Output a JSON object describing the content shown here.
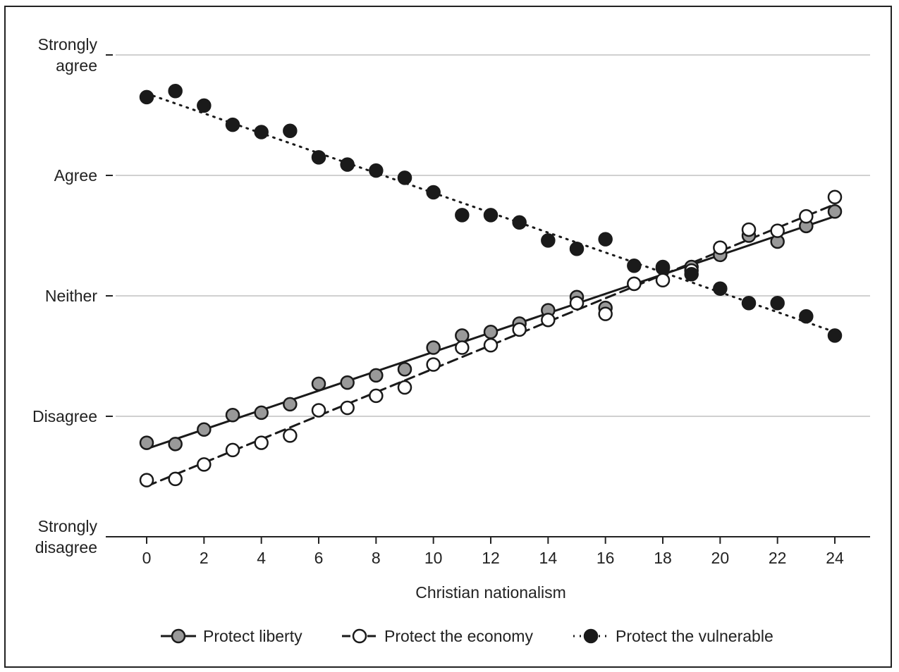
{
  "chart_data": {
    "type": "line",
    "title": "",
    "xlabel": "Christian nationalism",
    "ylabel": "",
    "xlim": [
      0,
      24
    ],
    "ylim": [
      1,
      5
    ],
    "x_ticks": [
      0,
      2,
      4,
      6,
      8,
      10,
      12,
      14,
      16,
      18,
      20,
      22,
      24
    ],
    "y_ticks": [
      {
        "value": 5,
        "label_lines": [
          "Strongly",
          "agree"
        ]
      },
      {
        "value": 4,
        "label_lines": [
          "Agree"
        ]
      },
      {
        "value": 3,
        "label_lines": [
          "Neither"
        ]
      },
      {
        "value": 2,
        "label_lines": [
          "Disagree"
        ]
      },
      {
        "value": 1,
        "label_lines": [
          "Strongly",
          "disagree"
        ]
      }
    ],
    "grid": true,
    "legend_position": "bottom",
    "x": [
      0,
      1,
      2,
      3,
      4,
      5,
      6,
      7,
      8,
      9,
      10,
      11,
      12,
      13,
      14,
      15,
      16,
      17,
      18,
      19,
      20,
      21,
      22,
      23,
      24
    ],
    "series": [
      {
        "name": "Protect liberty",
        "marker": "gray-circle",
        "line_style": "solid",
        "color": "#999999",
        "values": [
          1.78,
          1.77,
          1.89,
          2.01,
          2.03,
          2.1,
          2.27,
          2.28,
          2.34,
          2.39,
          2.57,
          2.67,
          2.7,
          2.77,
          2.88,
          2.99,
          2.9,
          3.1,
          3.23,
          3.24,
          3.34,
          3.5,
          3.45,
          3.58,
          3.7
        ],
        "trend": [
          1.73,
          3.66
        ]
      },
      {
        "name": "Protect the economy",
        "marker": "white-circle",
        "line_style": "dashed",
        "color": "#ffffff",
        "values": [
          1.47,
          1.48,
          1.6,
          1.72,
          1.78,
          1.84,
          2.05,
          2.07,
          2.17,
          2.24,
          2.43,
          2.57,
          2.59,
          2.72,
          2.8,
          2.94,
          2.85,
          3.1,
          3.13,
          3.21,
          3.4,
          3.55,
          3.54,
          3.66,
          3.82
        ],
        "trend": [
          1.42,
          3.76
        ]
      },
      {
        "name": "Protect the vulnerable",
        "marker": "black-circle",
        "line_style": "dotted",
        "color": "#1a1a1a",
        "values": [
          4.65,
          4.7,
          4.58,
          4.42,
          4.36,
          4.37,
          4.15,
          4.09,
          4.04,
          3.98,
          3.86,
          3.67,
          3.67,
          3.61,
          3.46,
          3.39,
          3.47,
          3.25,
          3.24,
          3.18,
          3.06,
          2.94,
          2.94,
          2.83,
          2.67
        ],
        "trend": [
          4.68,
          2.7
        ]
      }
    ]
  }
}
